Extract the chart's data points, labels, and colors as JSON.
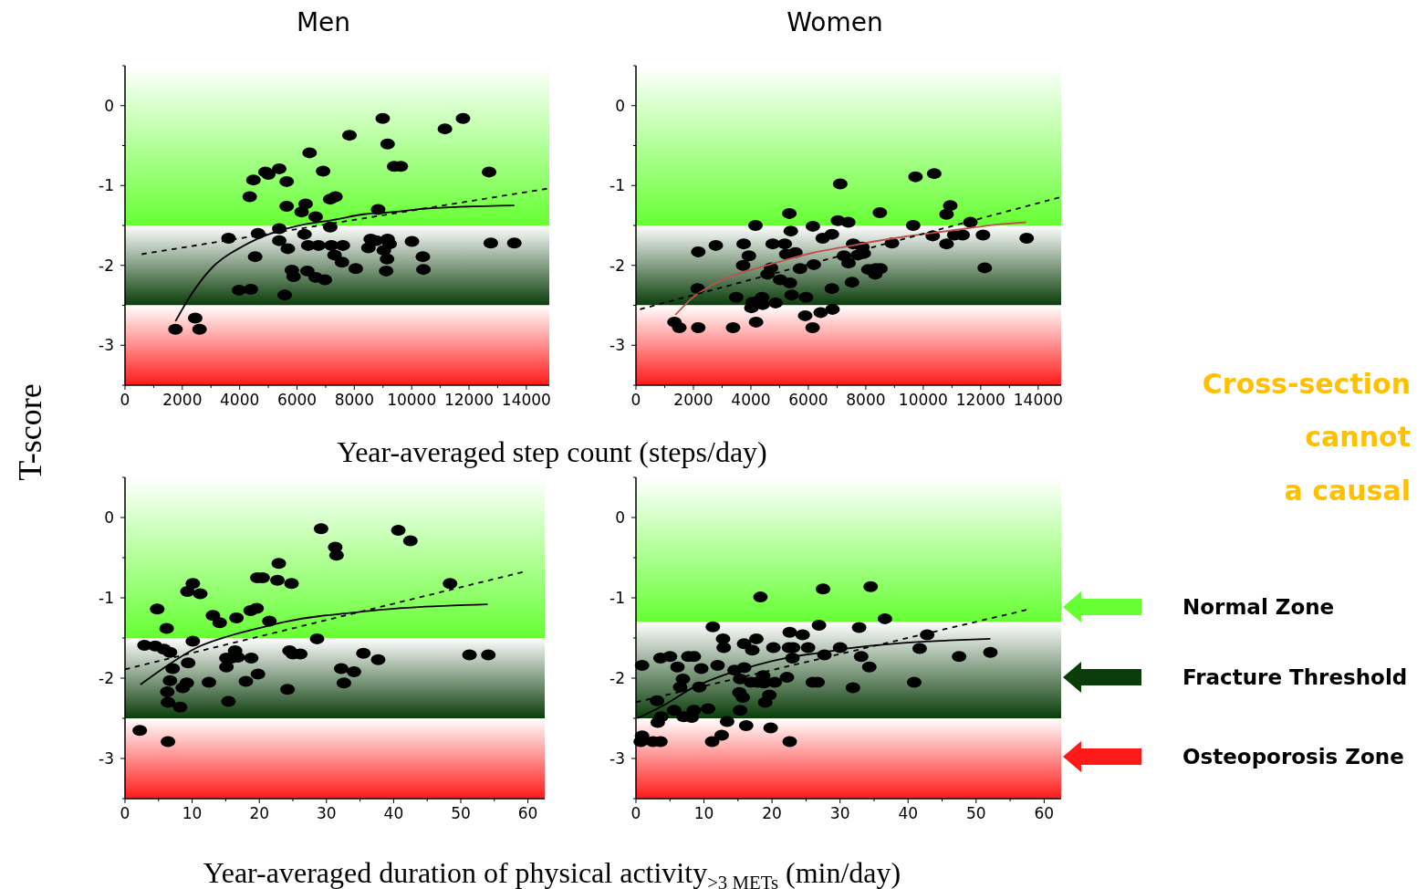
{
  "chart_data": [
    {
      "type": "scatter",
      "title": "Men",
      "ylabel": "T-score",
      "xlabel": "Year-averaged step count (steps/day)",
      "xlim": [
        0,
        14800
      ],
      "ylim": [
        -3.5,
        0.5
      ],
      "xticks": [
        0,
        {
          "value": 1000,
          "label": null
        },
        2000,
        {
          "value": 3000,
          "label": null
        },
        4000,
        {
          "value": 5000,
          "label": null
        },
        6000,
        {
          "value": 7000,
          "label": null
        },
        8000,
        {
          "value": 9000,
          "label": null
        },
        10000,
        {
          "value": 11000,
          "label": null
        },
        12000,
        {
          "value": 13000,
          "label": null
        },
        14000
      ],
      "yticks": [
        {
          "value": -3.5,
          "label": null
        },
        -3,
        {
          "value": -2.5,
          "label": null
        },
        -2,
        {
          "value": -1.5,
          "label": null
        },
        -1,
        {
          "value": -0.5,
          "label": null
        },
        0,
        {
          "value": 0.5,
          "label": null
        }
      ],
      "grid": false,
      "bands": [
        {
          "axis": "y",
          "from": -1.5,
          "to": 0.5,
          "color": "#66ff33"
        },
        {
          "axis": "y",
          "from": -2.5,
          "to": -1.5,
          "color": "#0a3d0a"
        },
        {
          "axis": "y",
          "from": -3.5,
          "to": -2.5,
          "color": "#ff1a1a"
        }
      ],
      "series": [
        {
          "type": "scatter",
          "color": "#000000",
          "marker": "circle",
          "x": [
            1760,
            2450,
            2600,
            3610,
            3980,
            4390,
            4350,
            4480,
            4540,
            4640,
            4900,
            5000,
            5380,
            5380,
            5380,
            5640,
            5640,
            5680,
            5570,
            5820,
            5880,
            6160,
            6300,
            6260,
            6440,
            6390,
            6360,
            6650,
            6650,
            6750,
            6910,
            6970,
            7160,
            7340,
            7160,
            7200,
            7310,
            7600,
            7570,
            7830,
            8050,
            8490,
            8570,
            8760,
            8830,
            8990,
            9030,
            9160,
            9230,
            9140,
            9110,
            9160,
            9390,
            9620,
            10010,
            10390,
            10410,
            11160,
            11790,
            12700,
            12760,
            13580
          ],
          "values": [
            -2.8,
            -2.66,
            -2.8,
            -1.66,
            -2.31,
            -2.3,
            -1.14,
            -0.93,
            -1.89,
            -1.6,
            -0.83,
            -0.86,
            -0.79,
            -1.54,
            -1.69,
            -0.95,
            -1.26,
            -1.79,
            -2.37,
            -2.06,
            -2.14,
            -1.33,
            -1.23,
            -1.61,
            -0.59,
            -1.75,
            -2.07,
            -1.39,
            -2.15,
            -1.75,
            -0.82,
            -2.18,
            -1.17,
            -1.14,
            -1.52,
            -1.75,
            -1.87,
            -1.75,
            -1.96,
            -0.37,
            -2.04,
            -1.78,
            -1.67,
            -1.69,
            -1.3,
            -0.16,
            -1.81,
            -1.67,
            -1.73,
            -1.92,
            -2.07,
            -0.48,
            -0.76,
            -0.76,
            -1.7,
            -1.89,
            -2.05,
            -0.29,
            -0.16,
            -0.83,
            -1.72,
            -1.72
          ]
        },
        {
          "type": "line",
          "color": "#000000",
          "line_style": "solid",
          "x": [
            1760,
            2320,
            3060,
            4110,
            5170,
            6220,
            7280,
            8330,
            9390,
            10440,
            11500,
            13580
          ],
          "values": [
            -2.7,
            -2.36,
            -2.02,
            -1.76,
            -1.59,
            -1.49,
            -1.43,
            -1.36,
            -1.33,
            -1.29,
            -1.27,
            -1.25
          ]
        },
        {
          "type": "line",
          "color": "#000000",
          "line_style": "dashed",
          "x": [
            580,
            14720
          ],
          "values": [
            -1.86,
            -1.04
          ]
        }
      ]
    },
    {
      "type": "scatter",
      "title": "Women",
      "xlim": [
        0,
        14800
      ],
      "ylim": [
        -3.5,
        0.5
      ],
      "xticks": [
        0,
        {
          "value": 1000,
          "label": null
        },
        2000,
        {
          "value": 3000,
          "label": null
        },
        4000,
        {
          "value": 5000,
          "label": null
        },
        6000,
        {
          "value": 7000,
          "label": null
        },
        8000,
        {
          "value": 9000,
          "label": null
        },
        10000,
        {
          "value": 11000,
          "label": null
        },
        12000,
        {
          "value": 13000,
          "label": null
        },
        14000
      ],
      "yticks": [
        {
          "value": -3.5,
          "label": null
        },
        -3,
        {
          "value": -2.5,
          "label": null
        },
        -2,
        {
          "value": -1.5,
          "label": null
        },
        -1,
        {
          "value": -0.5,
          "label": null
        },
        0,
        {
          "value": 0.5,
          "label": null
        }
      ],
      "grid": false,
      "bands": [
        {
          "axis": "y",
          "from": -1.5,
          "to": 0.5,
          "color": "#66ff33"
        },
        {
          "axis": "y",
          "from": -2.5,
          "to": -1.5,
          "color": "#0a3d0a"
        },
        {
          "axis": "y",
          "from": -3.5,
          "to": -2.5,
          "color": "#ff1a1a"
        }
      ],
      "series": [
        {
          "type": "scatter",
          "color": "#000000",
          "marker": "circle",
          "x": [
            1340,
            1510,
            2170,
            2150,
            2170,
            2780,
            3380,
            3490,
            3750,
            3730,
            3930,
            4160,
            4070,
            4020,
            4180,
            4390,
            4410,
            4580,
            4700,
            4760,
            4860,
            5020,
            5180,
            5230,
            5340,
            5360,
            5390,
            5420,
            5550,
            5710,
            5890,
            5920,
            6160,
            6190,
            6150,
            6430,
            6500,
            6820,
            6820,
            6840,
            7110,
            7030,
            7390,
            7240,
            7400,
            7520,
            7560,
            7720,
            7880,
            7930,
            8090,
            8330,
            8350,
            8510,
            8490,
            8910,
            9650,
            9730,
            10380,
            10330,
            10810,
            10810,
            10940,
            11080,
            11370,
            11640,
            12080,
            12140,
            13600
          ],
          "values": [
            -2.71,
            -2.78,
            -1.83,
            -2.29,
            -2.78,
            -1.75,
            -2.78,
            -2.4,
            -1.73,
            -2.0,
            -1.88,
            -1.5,
            -2.46,
            -2.53,
            -2.71,
            -2.4,
            -2.49,
            -2.11,
            -2.03,
            -1.73,
            -2.47,
            -2.18,
            -1.73,
            -1.86,
            -1.35,
            -2.22,
            -1.57,
            -2.37,
            -1.84,
            -2.04,
            -2.63,
            -2.4,
            -1.51,
            -1.99,
            -2.78,
            -2.59,
            -1.66,
            -1.61,
            -2.29,
            -2.55,
            -0.98,
            -1.44,
            -1.46,
            -1.88,
            -1.97,
            -2.21,
            -1.73,
            -1.87,
            -1.77,
            -1.85,
            -2.05,
            -2.11,
            -2.04,
            -2.04,
            -1.34,
            -1.72,
            -1.5,
            -0.89,
            -0.85,
            -1.63,
            -1.73,
            -1.36,
            -1.25,
            -1.62,
            -1.62,
            -1.46,
            -1.62,
            -2.03,
            -1.66
          ]
        },
        {
          "type": "line",
          "color": "#c0504d",
          "line_style": "solid",
          "x": [
            1370,
            1960,
            3010,
            4070,
            5130,
            6180,
            7240,
            8300,
            9360,
            10410,
            11470,
            12530,
            13580
          ],
          "values": [
            -2.62,
            -2.41,
            -2.18,
            -2.05,
            -1.94,
            -1.84,
            -1.77,
            -1.7,
            -1.64,
            -1.59,
            -1.54,
            -1.49,
            -1.46
          ]
        },
        {
          "type": "line",
          "color": "#000000",
          "line_style": "dashed",
          "x": [
            140,
            14730
          ],
          "values": [
            -2.55,
            -1.15
          ]
        }
      ]
    },
    {
      "type": "scatter",
      "xlabel": "Year-averaged duration of physical activity$_{>3 METs}$ (min/day)",
      "xlim": [
        0,
        62.5
      ],
      "ylim": [
        -3.5,
        0.5
      ],
      "xticks": [
        0,
        {
          "value": 5,
          "label": null
        },
        10,
        {
          "value": 15,
          "label": null
        },
        20,
        {
          "value": 25,
          "label": null
        },
        30,
        {
          "value": 35,
          "label": null
        },
        40,
        {
          "value": 45,
          "label": null
        },
        50,
        {
          "value": 55,
          "label": null
        },
        60
      ],
      "yticks": [
        {
          "value": -3.5,
          "label": null
        },
        -3,
        {
          "value": -2.5,
          "label": null
        },
        -2,
        {
          "value": -1.5,
          "label": null
        },
        -1,
        {
          "value": -0.5,
          "label": null
        },
        0,
        {
          "value": 0.5,
          "label": null
        }
      ],
      "grid": false,
      "bands": [
        {
          "axis": "y",
          "from": -1.5,
          "to": 0.5,
          "color": "#66ff33"
        },
        {
          "axis": "y",
          "from": -2.5,
          "to": -1.5,
          "color": "#0a3d0a"
        },
        {
          "axis": "y",
          "from": -3.5,
          "to": -2.5,
          "color": "#ff1a1a"
        }
      ],
      "series": [
        {
          "type": "scatter",
          "color": "#000000",
          "marker": "circle",
          "x": [
            2.2,
            2.9,
            4.5,
            4.8,
            5.8,
            6.2,
            6.3,
            6.4,
            6.4,
            6.7,
            6.7,
            7.1,
            8.2,
            8.6,
            9.3,
            9.2,
            9.4,
            10.1,
            10.1,
            11.2,
            12.5,
            13.1,
            14.1,
            15.1,
            15.1,
            15.4,
            15.8,
            16.4,
            16.8,
            16.6,
            18.0,
            18.7,
            19.6,
            18.8,
            19.8,
            19.7,
            20.5,
            21.5,
            22.7,
            22.9,
            24.2,
            24.5,
            24.8,
            25.0,
            26.1,
            28.6,
            29.2,
            31.3,
            31.5,
            32.2,
            32.6,
            34.1,
            35.5,
            37.7,
            40.7,
            42.5,
            48.4,
            51.3,
            54.1
          ],
          "values": [
            -2.65,
            -1.59,
            -1.6,
            -1.14,
            -1.64,
            -1.38,
            -2.17,
            -2.3,
            -2.79,
            -1.68,
            -2.03,
            -1.88,
            -2.36,
            -2.12,
            -0.92,
            -2.06,
            -1.81,
            -0.82,
            -1.54,
            -0.95,
            -2.05,
            -1.22,
            -1.31,
            -1.75,
            -1.86,
            -2.29,
            -1.75,
            -1.66,
            -1.74,
            -1.25,
            -2.04,
            -1.16,
            -1.13,
            -1.75,
            -1.95,
            -0.75,
            -0.75,
            -1.29,
            -0.78,
            -0.57,
            -2.14,
            -1.66,
            -0.82,
            -1.7,
            -1.7,
            -1.51,
            -0.14,
            -0.37,
            -0.47,
            -1.88,
            -2.06,
            -1.92,
            -1.69,
            -1.77,
            -0.16,
            -0.29,
            -0.82,
            -1.71,
            -1.71
          ]
        },
        {
          "type": "line",
          "color": "#000000",
          "line_style": "solid",
          "x": [
            2.3,
            6.2,
            10.7,
            15.3,
            19.8,
            24.3,
            28.8,
            33.4,
            37.9,
            44.7,
            54.0
          ],
          "values": [
            -2.08,
            -1.85,
            -1.62,
            -1.48,
            -1.38,
            -1.29,
            -1.23,
            -1.19,
            -1.15,
            -1.11,
            -1.08
          ]
        },
        {
          "type": "line",
          "color": "#000000",
          "line_style": "dashed",
          "x": [
            0,
            59.2
          ],
          "values": [
            -1.89,
            -0.68
          ]
        }
      ]
    },
    {
      "type": "scatter",
      "xlim": [
        0,
        62.5
      ],
      "ylim": [
        -3.5,
        0.5
      ],
      "xticks": [
        0,
        {
          "value": 5,
          "label": null
        },
        10,
        {
          "value": 15,
          "label": null
        },
        20,
        {
          "value": 25,
          "label": null
        },
        30,
        {
          "value": 35,
          "label": null
        },
        40,
        {
          "value": 45,
          "label": null
        },
        50,
        {
          "value": 55,
          "label": null
        },
        60
      ],
      "yticks": [
        {
          "value": -3.5,
          "label": null
        },
        -3,
        {
          "value": -2.5,
          "label": null
        },
        -2,
        {
          "value": -1.5,
          "label": null
        },
        -1,
        {
          "value": -0.5,
          "label": null
        },
        0,
        {
          "value": 0.5,
          "label": null
        }
      ],
      "grid": false,
      "bands": [
        {
          "axis": "y",
          "from": -1.3,
          "to": 0.5,
          "color": "#66ff33"
        },
        {
          "axis": "y",
          "from": -2.5,
          "to": -1.3,
          "color": "#0a3d0a"
        },
        {
          "axis": "y",
          "from": -3.5,
          "to": -2.5,
          "color": "#ff1a1a"
        }
      ],
      "series": [
        {
          "type": "scatter",
          "color": "#000000",
          "marker": "circle",
          "x": [
            0.9,
            0.9,
            0.7,
            2.5,
            3.6,
            3.1,
            3.2,
            3.7,
            3.6,
            5.0,
            5.6,
            6.1,
            6.5,
            6.9,
            7.0,
            7.7,
            8.2,
            8.5,
            8.5,
            9.3,
            9.6,
            10.6,
            11.2,
            11.3,
            12.0,
            12.6,
            12.8,
            12.9,
            13.4,
            14.5,
            15.2,
            15.3,
            15.3,
            15.7,
            15.9,
            15.9,
            16.2,
            16.9,
            17.1,
            17.7,
            17.9,
            18.3,
            18.7,
            18.8,
            19.0,
            19.6,
            19.8,
            20.2,
            20.4,
            22.2,
            22.6,
            22.6,
            22.5,
            23.1,
            23.0,
            24.5,
            25.3,
            26.0,
            26.7,
            26.9,
            27.5,
            27.7,
            30.0,
            31.9,
            32.8,
            33.1,
            34.3,
            34.5,
            36.6,
            40.9,
            41.7,
            42.8,
            47.5,
            52.1
          ],
          "values": [
            -1.84,
            -2.72,
            -2.79,
            -2.79,
            -2.79,
            -2.28,
            -2.55,
            -2.48,
            -1.75,
            -1.73,
            -2.4,
            -1.86,
            -2.11,
            -2.01,
            -2.48,
            -1.73,
            -2.49,
            -1.73,
            -2.4,
            -2.11,
            -1.88,
            -2.38,
            -2.79,
            -1.36,
            -1.84,
            -2.71,
            -1.51,
            -1.62,
            -2.54,
            -1.9,
            -2.18,
            -2.4,
            -2.01,
            -2.24,
            -1.57,
            -1.87,
            -2.59,
            -2.05,
            -1.65,
            -1.51,
            -2.05,
            -0.99,
            -1.97,
            -2.06,
            -2.3,
            -2.21,
            -2.62,
            -1.62,
            -2.05,
            -1.99,
            -1.43,
            -2.79,
            -1.62,
            -1.62,
            -1.75,
            -1.46,
            -1.62,
            -2.05,
            -2.05,
            -1.34,
            -0.89,
            -1.71,
            -1.62,
            -2.12,
            -1.37,
            -1.73,
            -1.86,
            -0.86,
            -1.26,
            -2.05,
            -1.63,
            -1.46,
            -1.73,
            -1.68
          ]
        },
        {
          "type": "line",
          "color": "#000000",
          "line_style": "solid",
          "x": [
            0.2,
            4.0,
            8.6,
            13.3,
            18.0,
            22.6,
            27.3,
            32.0,
            36.6,
            41.3,
            46.0,
            52.1
          ],
          "values": [
            -2.5,
            -2.34,
            -2.11,
            -1.95,
            -1.83,
            -1.74,
            -1.68,
            -1.62,
            -1.58,
            -1.55,
            -1.53,
            -1.51
          ]
        },
        {
          "type": "line",
          "color": "#000000",
          "line_style": "dashed",
          "x": [
            0,
            57.4
          ],
          "values": [
            -2.3,
            -1.15
          ]
        }
      ]
    },
    {
      "type": "other",
      "annotations": [
        "Cross-section",
        "cannot",
        "a causal",
        "Normal Zone",
        "Fracture Threshold",
        "Osteoporosis Zone"
      ]
    }
  ]
}
